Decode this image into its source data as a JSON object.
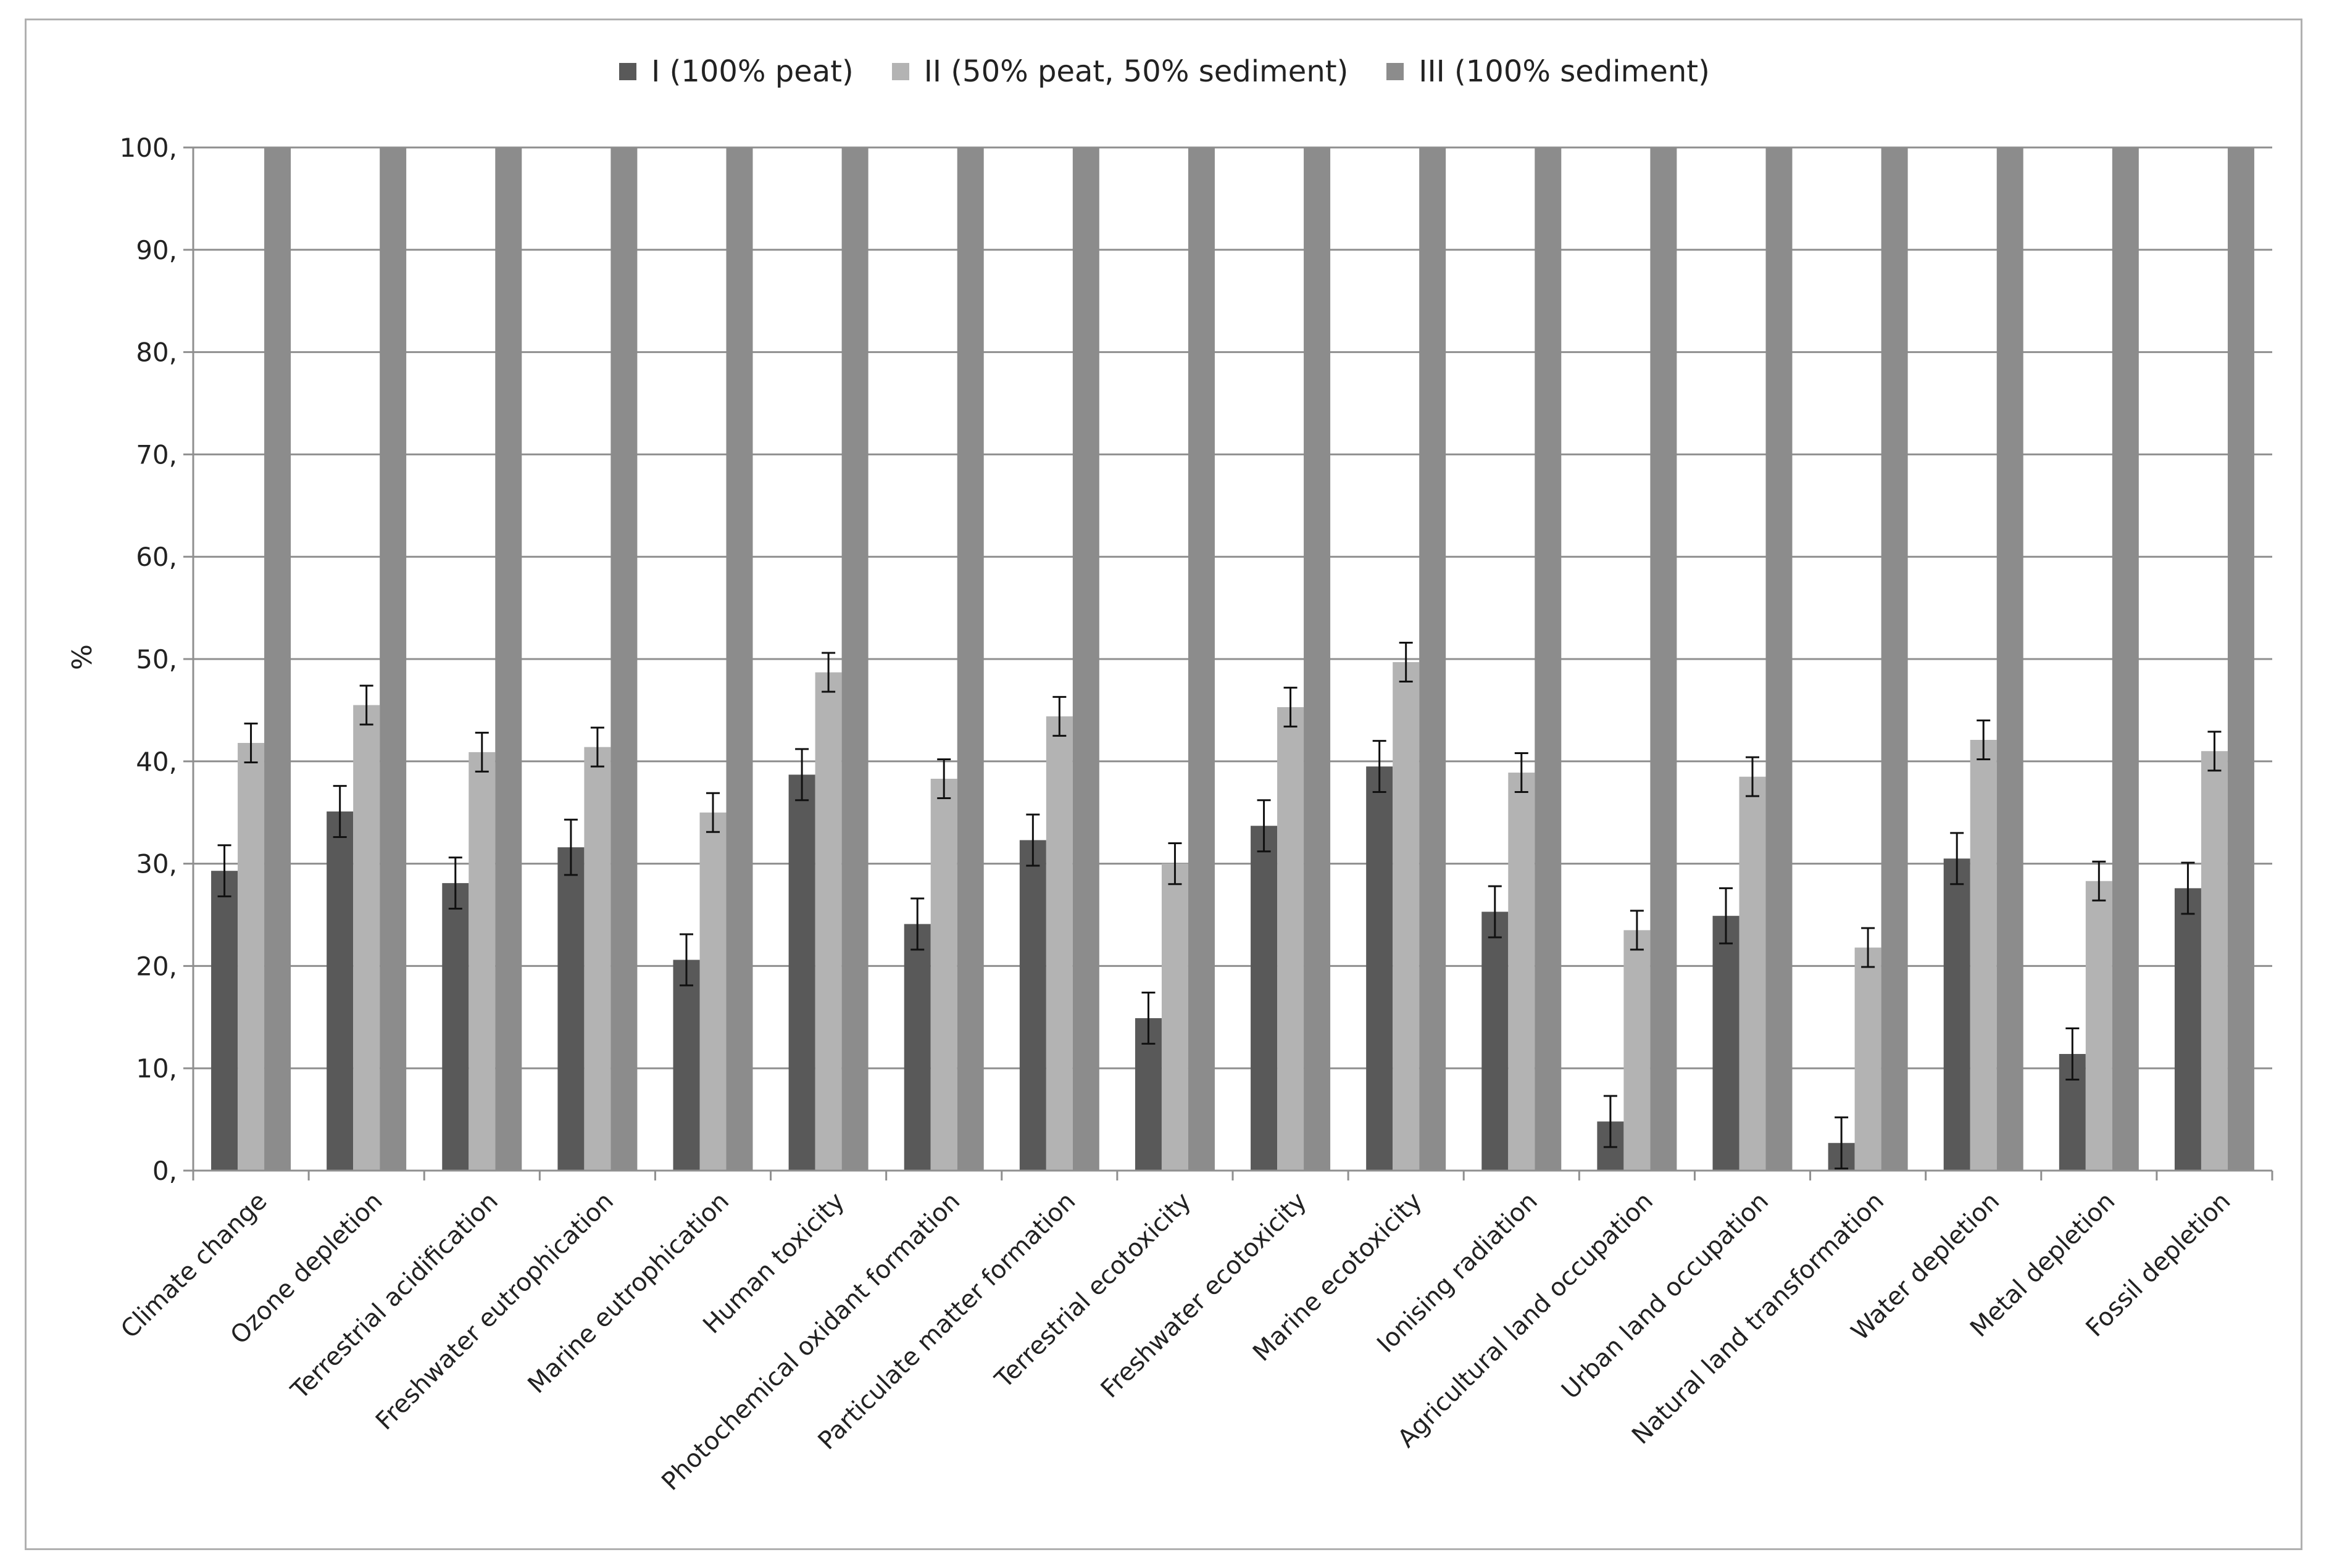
{
  "chart_data": {
    "type": "bar",
    "title": "",
    "xlabel": "",
    "ylabel": "%",
    "ylim": [
      0,
      100
    ],
    "yticks": [
      "0,",
      "10,",
      "20,",
      "30,",
      "40,",
      "50,",
      "60,",
      "70,",
      "80,",
      "90,",
      "100,"
    ],
    "grid": "horizontal",
    "legend_position": "top-center",
    "error_bars": true,
    "categories": [
      "Climate change",
      "Ozone depletion",
      "Terrestrial acidification",
      "Freshwater eutrophication",
      "Marine eutrophication",
      "Human toxicity",
      "Photochemical oxidant formation",
      "Particulate matter formation",
      "Terrestrial ecotoxicity",
      "Freshwater ecotoxicity",
      "Marine ecotoxicity",
      "Ionising radiation",
      "Agricultural land occupation",
      "Urban land occupation",
      "Natural land transformation",
      "Water depletion",
      "Metal depletion",
      "Fossil depletion"
    ],
    "series": [
      {
        "name": "I (100% peat)",
        "color": "#595959",
        "values": [
          29.3,
          35.1,
          28.1,
          31.6,
          20.6,
          38.7,
          24.1,
          32.3,
          14.9,
          33.7,
          39.5,
          25.3,
          4.8,
          24.9,
          2.7,
          30.5,
          11.4,
          27.6
        ],
        "errors": [
          2.5,
          2.5,
          2.5,
          2.7,
          2.5,
          2.5,
          2.5,
          2.5,
          2.5,
          2.5,
          2.5,
          2.5,
          2.5,
          2.7,
          2.5,
          2.5,
          2.5,
          2.5
        ]
      },
      {
        "name": "II (50% peat, 50% sediment)",
        "color": "#b3b3b3",
        "values": [
          41.8,
          45.5,
          40.9,
          41.4,
          35.0,
          48.7,
          38.3,
          44.4,
          30.0,
          45.3,
          49.7,
          38.9,
          23.5,
          38.5,
          21.8,
          42.1,
          28.3,
          41.0
        ],
        "errors": [
          1.9,
          1.9,
          1.9,
          1.9,
          1.9,
          1.9,
          1.9,
          1.9,
          2.0,
          1.9,
          1.9,
          1.9,
          1.9,
          1.9,
          1.9,
          1.9,
          1.9,
          1.9
        ]
      },
      {
        "name": "III (100% sediment)",
        "color": "#8c8c8c",
        "values": [
          100,
          100,
          100,
          100,
          100,
          100,
          100,
          100,
          100,
          100,
          100,
          100,
          100,
          100,
          100,
          100,
          100,
          100
        ]
      }
    ]
  }
}
